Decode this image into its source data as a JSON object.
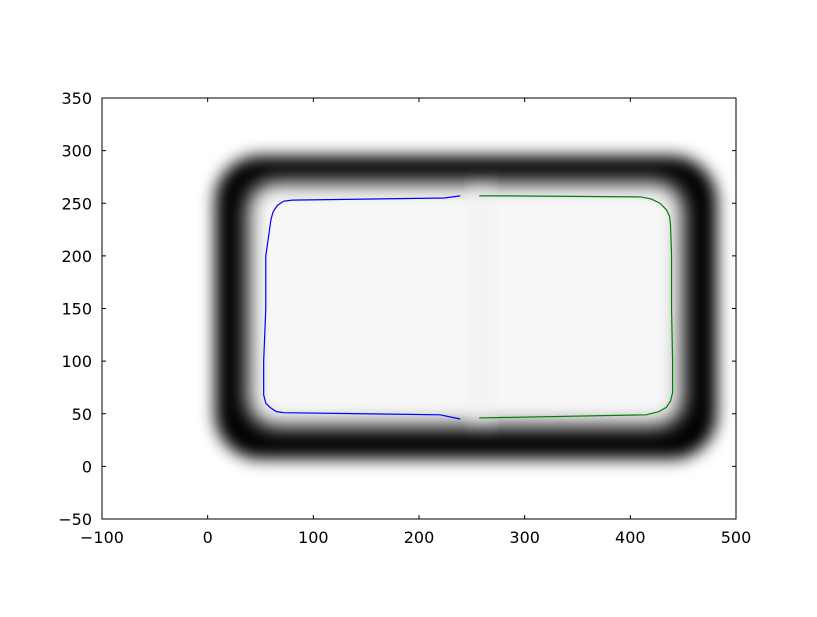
{
  "chart_data": {
    "type": "line",
    "title": "",
    "xlabel": "",
    "ylabel": "",
    "xlim": [
      -100,
      500
    ],
    "ylim": [
      -50,
      350
    ],
    "xticks": [
      -100,
      0,
      100,
      200,
      300,
      400,
      500
    ],
    "yticks": [
      -50,
      0,
      50,
      100,
      150,
      200,
      250,
      300,
      350
    ],
    "xtick_labels": [
      "−100",
      "0",
      "100",
      "200",
      "300",
      "400",
      "500"
    ],
    "ytick_labels": [
      "−50",
      "0",
      "50",
      "100",
      "150",
      "200",
      "250",
      "300",
      "350"
    ],
    "grid": false,
    "background_image": {
      "description_kind": "grayscale rounded-rectangle mask",
      "outer_extent": {
        "x": [
          7,
          482
        ],
        "y": [
          7,
          295
        ]
      },
      "inner_extent": {
        "x": [
          38,
          450
        ],
        "y": [
          38,
          270
        ]
      },
      "colors": {
        "outer": "#000000",
        "inner": "#f7f7f7"
      }
    },
    "series": [
      {
        "color": "#0000ff",
        "x": [
          239,
          224,
          80,
          72,
          66,
          62,
          60,
          55,
          55,
          53,
          53,
          55,
          59,
          65,
          72,
          220,
          239
        ],
        "y": [
          257,
          255,
          253,
          252,
          248,
          242,
          235,
          200,
          150,
          100,
          68,
          60,
          56,
          52,
          51,
          49,
          45
        ]
      },
      {
        "color": "#008000",
        "x": [
          257,
          270,
          285,
          410,
          420,
          428,
          434,
          437,
          438,
          439,
          439,
          440,
          440,
          438,
          434,
          427,
          415,
          257
        ],
        "y": [
          257,
          257,
          257,
          256,
          254,
          250,
          244,
          238,
          230,
          200,
          150,
          100,
          70,
          62,
          56,
          52,
          49,
          46
        ]
      }
    ]
  }
}
